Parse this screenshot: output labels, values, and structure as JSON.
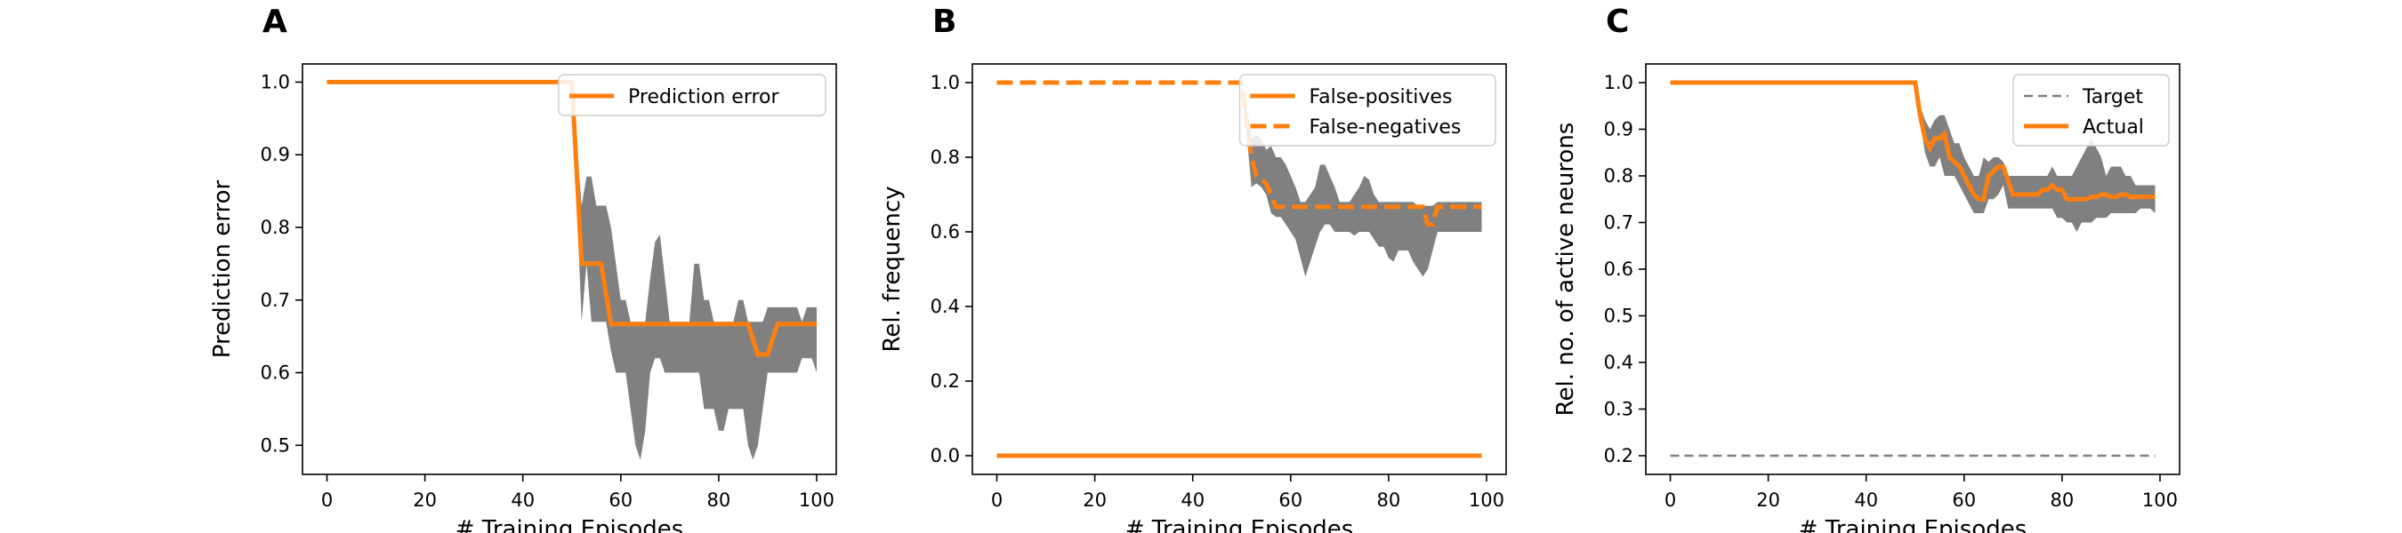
{
  "chart_data": [
    {
      "panel": "A",
      "type": "line",
      "xlabel": "# Training Episodes",
      "ylabel": "Prediction error",
      "xlim": [
        -5,
        104
      ],
      "ylim": [
        0.46,
        1.025
      ],
      "xticks": [
        0,
        20,
        40,
        60,
        80,
        100
      ],
      "yticks": [
        0.5,
        0.6,
        0.7,
        0.8,
        0.9,
        1.0
      ],
      "ytick_labels": [
        "0.5",
        "0.6",
        "0.7",
        "0.8",
        "0.9",
        "1.0"
      ],
      "legend_position": "top-right",
      "series": [
        {
          "name": "Prediction error",
          "color": "#ff7f0e",
          "style": "solid",
          "x": [
            0,
            50,
            52,
            53,
            56,
            58,
            60,
            86,
            88,
            90,
            92,
            100
          ],
          "y": [
            1.0,
            1.0,
            0.75,
            0.75,
            0.75,
            0.667,
            0.667,
            0.667,
            0.625,
            0.625,
            0.667,
            0.667
          ]
        }
      ],
      "band": {
        "color": "#808080",
        "x": [
          50,
          52,
          53,
          54,
          55,
          56,
          57,
          58,
          59,
          60,
          61,
          62,
          63,
          64,
          65,
          66,
          67,
          68,
          69,
          70,
          71,
          72,
          73,
          74,
          75,
          76,
          77,
          78,
          79,
          80,
          81,
          82,
          83,
          84,
          85,
          86,
          87,
          88,
          89,
          90,
          91,
          92,
          93,
          94,
          95,
          96,
          97,
          98,
          99,
          100
        ],
        "upper": [
          1.0,
          0.83,
          0.87,
          0.87,
          0.83,
          0.83,
          0.83,
          0.8,
          0.75,
          0.7,
          0.7,
          0.67,
          0.67,
          0.67,
          0.67,
          0.73,
          0.78,
          0.79,
          0.73,
          0.67,
          0.67,
          0.67,
          0.67,
          0.67,
          0.75,
          0.75,
          0.7,
          0.7,
          0.67,
          0.67,
          0.67,
          0.67,
          0.67,
          0.7,
          0.7,
          0.67,
          0.67,
          0.67,
          0.67,
          0.69,
          0.69,
          0.69,
          0.69,
          0.69,
          0.69,
          0.69,
          0.67,
          0.69,
          0.69,
          0.69
        ],
        "lower": [
          1.0,
          0.67,
          0.75,
          0.67,
          0.67,
          0.67,
          0.67,
          0.63,
          0.6,
          0.6,
          0.6,
          0.55,
          0.5,
          0.48,
          0.52,
          0.6,
          0.62,
          0.62,
          0.6,
          0.6,
          0.6,
          0.6,
          0.6,
          0.6,
          0.6,
          0.6,
          0.55,
          0.55,
          0.55,
          0.52,
          0.52,
          0.55,
          0.55,
          0.55,
          0.55,
          0.5,
          0.48,
          0.5,
          0.55,
          0.6,
          0.6,
          0.6,
          0.6,
          0.6,
          0.6,
          0.6,
          0.62,
          0.62,
          0.62,
          0.6
        ]
      }
    },
    {
      "panel": "B",
      "type": "line",
      "xlabel": "# Training Episodes",
      "ylabel": "Rel. frequency",
      "xlim": [
        -5,
        104
      ],
      "ylim": [
        -0.05,
        1.05
      ],
      "xticks": [
        0,
        20,
        40,
        60,
        80,
        100
      ],
      "yticks": [
        0.0,
        0.2,
        0.4,
        0.6,
        0.8,
        1.0
      ],
      "ytick_labels": [
        "0.0",
        "0.2",
        "0.4",
        "0.6",
        "0.8",
        "1.0"
      ],
      "legend_position": "top-right",
      "series": [
        {
          "name": "False-positives",
          "color": "#ff7f0e",
          "style": "solid",
          "x": [
            0,
            99
          ],
          "y": [
            0.0,
            0.0
          ]
        },
        {
          "name": "False-negatives",
          "color": "#ff7f0e",
          "style": "dashed",
          "x": [
            0,
            50,
            52,
            53,
            55,
            57,
            60,
            87,
            88,
            89,
            90,
            92,
            99
          ],
          "y": [
            1.0,
            1.0,
            0.8,
            0.75,
            0.73,
            0.667,
            0.667,
            0.667,
            0.62,
            0.62,
            0.667,
            0.667,
            0.667
          ]
        }
      ],
      "band": {
        "color": "#808080",
        "x": [
          50,
          52,
          53,
          54,
          55,
          56,
          57,
          58,
          59,
          60,
          61,
          62,
          63,
          64,
          65,
          66,
          67,
          68,
          69,
          70,
          71,
          72,
          73,
          74,
          75,
          76,
          77,
          78,
          79,
          80,
          81,
          82,
          83,
          84,
          85,
          86,
          87,
          88,
          89,
          90,
          91,
          92,
          93,
          94,
          95,
          96,
          97,
          98,
          99
        ],
        "upper": [
          1.0,
          0.85,
          0.86,
          0.85,
          0.82,
          0.83,
          0.8,
          0.8,
          0.78,
          0.75,
          0.72,
          0.68,
          0.68,
          0.7,
          0.72,
          0.78,
          0.78,
          0.75,
          0.72,
          0.68,
          0.68,
          0.68,
          0.7,
          0.72,
          0.75,
          0.74,
          0.7,
          0.68,
          0.68,
          0.68,
          0.68,
          0.68,
          0.68,
          0.68,
          0.68,
          0.67,
          0.67,
          0.67,
          0.67,
          0.68,
          0.68,
          0.68,
          0.68,
          0.68,
          0.68,
          0.68,
          0.68,
          0.68,
          0.68
        ],
        "lower": [
          1.0,
          0.72,
          0.73,
          0.72,
          0.7,
          0.65,
          0.64,
          0.64,
          0.62,
          0.6,
          0.58,
          0.53,
          0.48,
          0.52,
          0.56,
          0.6,
          0.62,
          0.62,
          0.6,
          0.6,
          0.6,
          0.6,
          0.59,
          0.6,
          0.6,
          0.6,
          0.58,
          0.56,
          0.56,
          0.53,
          0.52,
          0.55,
          0.55,
          0.55,
          0.52,
          0.5,
          0.48,
          0.5,
          0.55,
          0.6,
          0.6,
          0.6,
          0.6,
          0.6,
          0.6,
          0.6,
          0.6,
          0.6,
          0.6
        ]
      }
    },
    {
      "panel": "C",
      "type": "line",
      "xlabel": "# Training Episodes",
      "ylabel": "Rel. no. of active neurons",
      "xlim": [
        -5,
        104
      ],
      "ylim": [
        0.16,
        1.04
      ],
      "xticks": [
        0,
        20,
        40,
        60,
        80,
        100
      ],
      "yticks": [
        0.2,
        0.3,
        0.4,
        0.5,
        0.6,
        0.7,
        0.8,
        0.9,
        1.0
      ],
      "ytick_labels": [
        "0.2",
        "0.3",
        "0.4",
        "0.5",
        "0.6",
        "0.7",
        "0.8",
        "0.9",
        "1.0"
      ],
      "legend_position": "top-right",
      "series": [
        {
          "name": "Target",
          "color": "#808080",
          "style": "dashed",
          "x": [
            0,
            99
          ],
          "y": [
            0.2,
            0.2
          ]
        },
        {
          "name": "Actual",
          "color": "#ff7f0e",
          "style": "solid",
          "x": [
            0,
            50,
            51,
            52,
            53,
            54,
            55,
            56,
            57,
            58,
            59,
            60,
            61,
            62,
            63,
            64,
            65,
            66,
            67,
            68,
            69,
            70,
            71,
            72,
            73,
            74,
            75,
            76,
            77,
            78,
            79,
            80,
            81,
            82,
            83,
            84,
            85,
            86,
            87,
            88,
            89,
            90,
            91,
            92,
            93,
            94,
            95,
            96,
            97,
            98,
            99
          ],
          "y": [
            1.0,
            1.0,
            0.93,
            0.88,
            0.86,
            0.88,
            0.88,
            0.89,
            0.84,
            0.83,
            0.82,
            0.8,
            0.78,
            0.76,
            0.75,
            0.75,
            0.8,
            0.81,
            0.82,
            0.82,
            0.79,
            0.76,
            0.76,
            0.76,
            0.76,
            0.76,
            0.76,
            0.77,
            0.77,
            0.78,
            0.77,
            0.77,
            0.75,
            0.75,
            0.75,
            0.75,
            0.75,
            0.755,
            0.755,
            0.76,
            0.76,
            0.755,
            0.755,
            0.76,
            0.76,
            0.755,
            0.755,
            0.755,
            0.755,
            0.755,
            0.755
          ]
        }
      ],
      "band": {
        "color": "#808080",
        "x": [
          50,
          51,
          52,
          53,
          54,
          55,
          56,
          57,
          58,
          59,
          60,
          61,
          62,
          63,
          64,
          65,
          66,
          67,
          68,
          69,
          70,
          71,
          72,
          73,
          74,
          75,
          76,
          77,
          78,
          79,
          80,
          81,
          82,
          83,
          84,
          85,
          86,
          87,
          88,
          89,
          90,
          91,
          92,
          93,
          94,
          95,
          96,
          97,
          98,
          99
        ],
        "upper": [
          1.0,
          0.95,
          0.92,
          0.9,
          0.92,
          0.93,
          0.93,
          0.9,
          0.87,
          0.87,
          0.84,
          0.82,
          0.8,
          0.8,
          0.84,
          0.83,
          0.84,
          0.84,
          0.83,
          0.8,
          0.8,
          0.8,
          0.8,
          0.8,
          0.8,
          0.8,
          0.8,
          0.8,
          0.82,
          0.8,
          0.8,
          0.8,
          0.8,
          0.82,
          0.84,
          0.86,
          0.88,
          0.86,
          0.84,
          0.8,
          0.82,
          0.82,
          0.82,
          0.8,
          0.8,
          0.78,
          0.78,
          0.78,
          0.78,
          0.78
        ],
        "lower": [
          1.0,
          0.92,
          0.85,
          0.82,
          0.82,
          0.84,
          0.8,
          0.8,
          0.8,
          0.78,
          0.76,
          0.74,
          0.72,
          0.72,
          0.72,
          0.75,
          0.75,
          0.76,
          0.78,
          0.73,
          0.73,
          0.73,
          0.73,
          0.73,
          0.73,
          0.73,
          0.73,
          0.73,
          0.73,
          0.71,
          0.71,
          0.7,
          0.7,
          0.68,
          0.7,
          0.7,
          0.7,
          0.71,
          0.71,
          0.71,
          0.72,
          0.72,
          0.72,
          0.72,
          0.72,
          0.72,
          0.73,
          0.73,
          0.73,
          0.72
        ]
      }
    }
  ]
}
